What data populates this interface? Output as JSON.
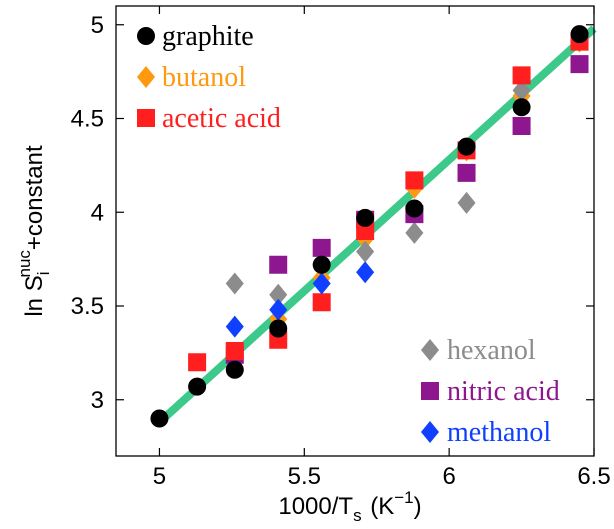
{
  "chart_data": {
    "type": "scatter",
    "title": "",
    "xlabel": "1000/T",
    "xlabel_sub": "s",
    "xlabel_units": "(K",
    "xlabel_sup": "−1",
    "xlabel_end": ")",
    "ylabel": "ln S",
    "ylabel_sub": "i",
    "ylabel_sup": "nuc",
    "ylabel_end": "+constant",
    "xlim": [
      4.85,
      6.5
    ],
    "ylim": [
      2.7,
      5.1
    ],
    "xticks": [
      "5",
      "5.5",
      "6",
      "6.5"
    ],
    "yticks": [
      "3",
      "3.5",
      "4",
      "4.5",
      "5"
    ],
    "fit_line": {
      "color": "#3cc98a",
      "x": [
        5.0,
        6.5
      ],
      "y": [
        2.88,
        4.98
      ]
    },
    "series": [
      {
        "name": "butanol",
        "marker": "diamond",
        "color": "#ff9910",
        "x": [
          5.26,
          5.41,
          5.56,
          5.71,
          5.88,
          6.06,
          6.25,
          6.45
        ],
        "y": [
          3.21,
          3.43,
          3.65,
          3.86,
          4.13,
          4.33,
          4.62,
          4.91
        ]
      },
      {
        "name": "hexanol",
        "marker": "diamond",
        "color": "#8c8c8c",
        "x": [
          5.26,
          5.41,
          5.56,
          5.71,
          5.88,
          6.06,
          6.25
        ],
        "y": [
          3.62,
          3.56,
          3.72,
          3.79,
          3.89,
          4.05,
          4.65
        ]
      },
      {
        "name": "nitric acid",
        "marker": "square",
        "color": "#8e168e",
        "x": [
          5.26,
          5.41,
          5.56,
          5.71,
          5.88,
          6.06,
          6.25,
          6.45
        ],
        "y": [
          3.24,
          3.72,
          3.81,
          3.96,
          3.99,
          4.21,
          4.46,
          4.79
        ]
      },
      {
        "name": "acetic acid",
        "marker": "square",
        "color": "#ff1f1f",
        "x": [
          5.13,
          5.26,
          5.41,
          5.56,
          5.71,
          5.88,
          6.06,
          6.25,
          6.45
        ],
        "y": [
          3.2,
          3.26,
          3.32,
          3.52,
          3.9,
          4.17,
          4.33,
          4.73,
          4.91
        ]
      },
      {
        "name": "methanol",
        "marker": "diamond",
        "color": "#1040ff",
        "x": [
          5.26,
          5.41,
          5.56,
          5.71
        ],
        "y": [
          3.39,
          3.48,
          3.62,
          3.68
        ]
      },
      {
        "name": "graphite",
        "marker": "circle",
        "color": "#000000",
        "x": [
          5.0,
          5.13,
          5.26,
          5.41,
          5.56,
          5.71,
          5.88,
          6.06,
          6.25,
          6.45
        ],
        "y": [
          2.9,
          3.07,
          3.16,
          3.38,
          3.72,
          3.97,
          4.02,
          4.35,
          4.56,
          4.95
        ]
      }
    ],
    "legend_top_left": [
      "graphite",
      "butanol",
      "acetic acid"
    ],
    "legend_bottom_right": [
      "hexanol",
      "nitric acid",
      "methanol"
    ]
  }
}
